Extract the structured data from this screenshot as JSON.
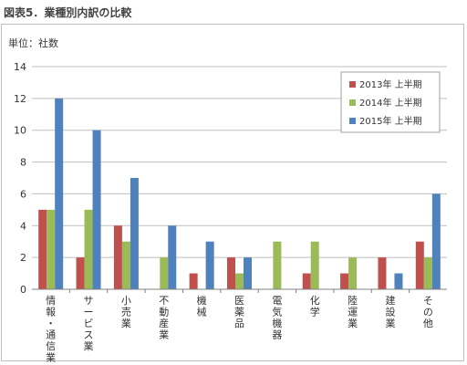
{
  "figure_title": "図表5．業種別内訳の比較",
  "chart_data": {
    "type": "bar",
    "unit_label": "単位：社数",
    "categories": [
      "情報・通信業",
      "サービス業",
      "小売業",
      "不動産業",
      "機械",
      "医薬品",
      "電気機器",
      "化学",
      "陸運業",
      "建設業",
      "その他"
    ],
    "series": [
      {
        "name": "2013年 上半期",
        "color": "#c0504d",
        "values": [
          5,
          2,
          4,
          0,
          1,
          2,
          0,
          1,
          1,
          2,
          3
        ]
      },
      {
        "name": "2014年 上半期",
        "color": "#9bbb59",
        "values": [
          5,
          5,
          3,
          2,
          0,
          1,
          3,
          3,
          2,
          0,
          2
        ]
      },
      {
        "name": "2015年 上半期",
        "color": "#4f81bd",
        "values": [
          12,
          10,
          7,
          4,
          3,
          2,
          0,
          0,
          0,
          1,
          6
        ]
      }
    ],
    "yticks": [
      0,
      2,
      4,
      6,
      8,
      10,
      12,
      14
    ],
    "ylim": [
      0,
      14
    ],
    "grid": true,
    "legend_position": "top-right"
  }
}
